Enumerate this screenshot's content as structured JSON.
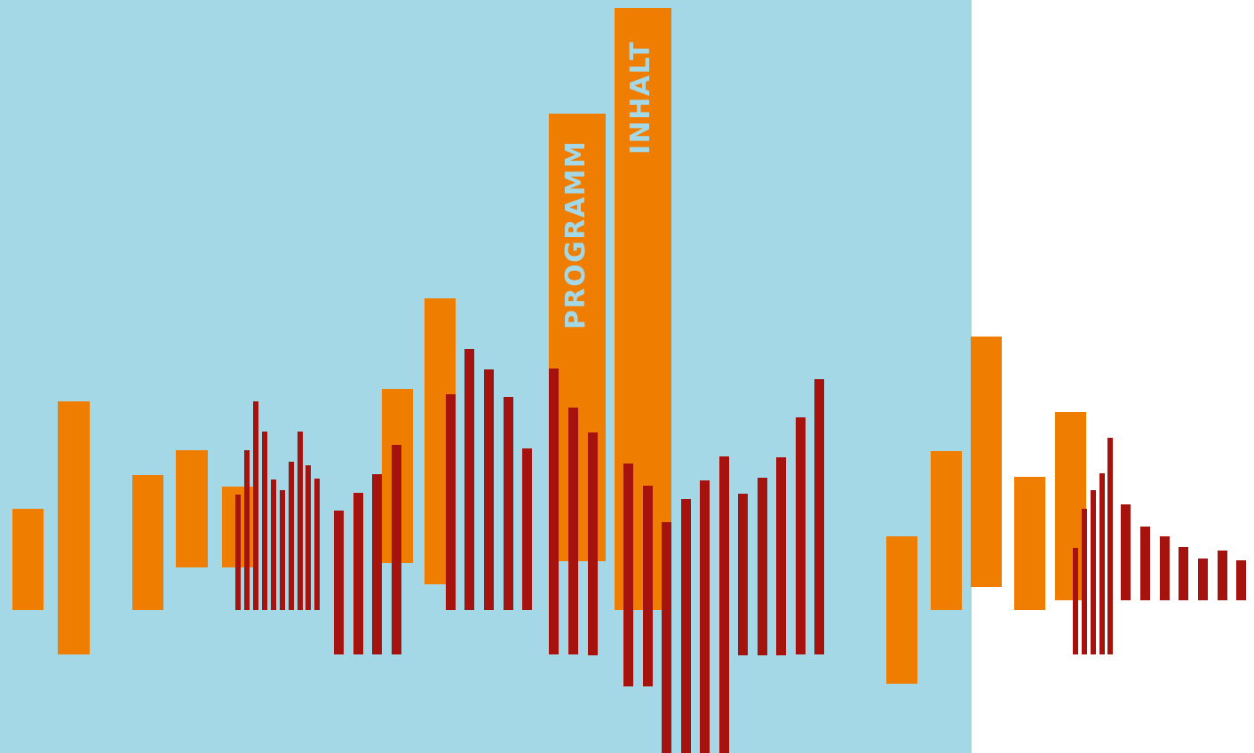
{
  "colors": {
    "background": "#a4d8e6",
    "orange": "#ef7d00",
    "red": "#a6120d",
    "label": "#a4d8e6"
  },
  "nav": {
    "programm": "PROGRAMM",
    "inhalt": "INHALT"
  }
}
